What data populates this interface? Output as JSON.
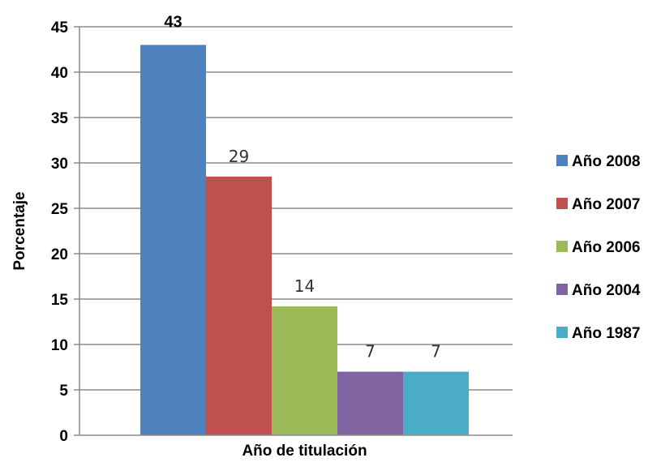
{
  "chart_data": {
    "type": "bar",
    "title": "",
    "xlabel": "Año de titulación",
    "ylabel": "Porcentaje",
    "ylim": [
      0,
      45
    ],
    "yticks": [
      0,
      5,
      10,
      15,
      20,
      25,
      30,
      35,
      40,
      45
    ],
    "grid": true,
    "legend_position": "right",
    "series": [
      {
        "name": "Año 2008",
        "value": 43,
        "label": "43",
        "color": "#4F81BD"
      },
      {
        "name": "Año 2007",
        "value": 28.5,
        "label": "29",
        "color": "#C0504D"
      },
      {
        "name": "Año 2006",
        "value": 14.2,
        "label": "14",
        "color": "#9BBB59"
      },
      {
        "name": "Año 2004",
        "value": 7,
        "label": "7",
        "color": "#8064A2"
      },
      {
        "name": "Año 1987",
        "value": 7,
        "label": "7",
        "color": "#4BACC6"
      }
    ]
  }
}
